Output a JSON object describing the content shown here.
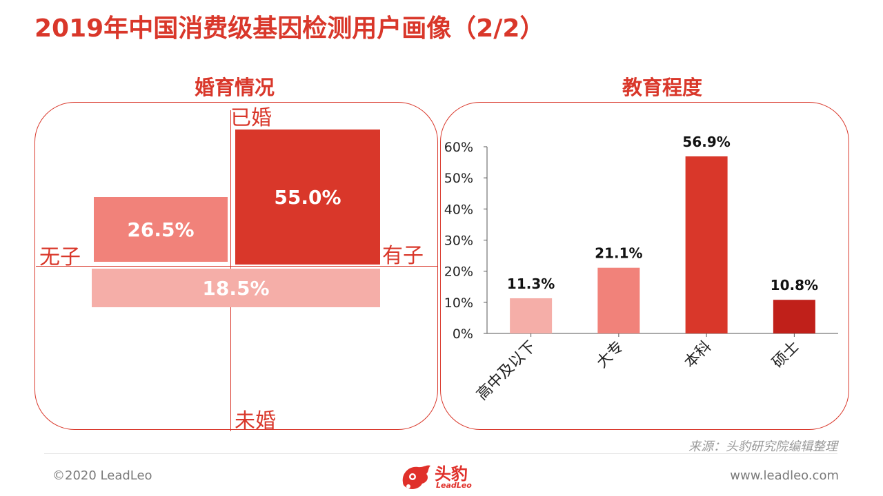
{
  "title": "2019年中国消费级基因检测用户画像（2/2）",
  "marriage": {
    "title": "婚育情况",
    "labels": {
      "top": "已婚",
      "bottom": "未婚",
      "left": "无子",
      "right": "有子"
    },
    "quadrants": [
      {
        "name": "已婚有子",
        "label": "55.0%",
        "value": 55.0,
        "color": "#d9372a"
      },
      {
        "name": "已婚无子",
        "label": "26.5%",
        "value": 26.5,
        "color": "#f1827a"
      },
      {
        "name": "未婚",
        "label": "18.5%",
        "value": 18.5,
        "color": "#f5aea8"
      }
    ]
  },
  "education": {
    "title": "教育程度"
  },
  "chart_data": {
    "type": "bar",
    "title": "教育程度",
    "categories": [
      "高中及以下",
      "大专",
      "本科",
      "硕士"
    ],
    "values": [
      11.3,
      21.1,
      56.9,
      10.8
    ],
    "value_labels": [
      "11.3%",
      "21.1%",
      "56.9%",
      "10.8%"
    ],
    "colors": [
      "#f5aea8",
      "#f1827a",
      "#d9372a",
      "#c0201a"
    ],
    "ylim": [
      0,
      60
    ],
    "yticks": [
      "0%",
      "10%",
      "20%",
      "30%",
      "40%",
      "50%",
      "60%"
    ],
    "grid": false,
    "xlabel": "",
    "ylabel": ""
  },
  "source": "来源：头豹研究院编辑整理",
  "footer": {
    "copyright": "©2020 LeadLeo",
    "logo_text": "头豹",
    "logo_sub": "LeadLeo",
    "url": "www.leadleo.com"
  }
}
